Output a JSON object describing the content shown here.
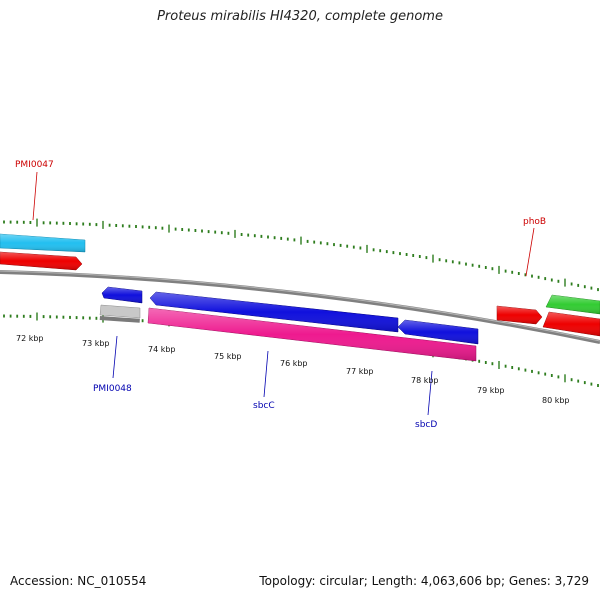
{
  "title": "Proteus mirabilis HI4320, complete genome",
  "footer": {
    "accession": "Accession: NC_010554",
    "summary": "Topology: circular; Length: 4,063,606 bp; Genes: 3,729"
  },
  "colors": {
    "background": "#ffffff",
    "backbone": "#808080",
    "ticks": "#2e7d1e",
    "label_red": "#cc0000",
    "label_blue": "#0000b0",
    "gene_cyan": "#22bff0",
    "gene_red": "#ee0000",
    "gene_blue": "#1010dd",
    "gene_gray": "#bdbdbd",
    "gene_pink": "#ee1a8f",
    "gene_green": "#33cc33"
  },
  "ruler": {
    "labels": [
      "72 kbp",
      "73 kbp",
      "74 kbp",
      "75 kbp",
      "76 kbp",
      "77 kbp",
      "78 kbp",
      "79 kbp",
      "80 kbp"
    ]
  },
  "genes": [
    {
      "label": "PMI0047",
      "color": "gene_cyan",
      "labelled": true,
      "label_color": "label_red"
    },
    {
      "label": "",
      "color": "gene_red",
      "labelled": false
    },
    {
      "label": "phoB",
      "color": "gene_red",
      "labelled": true,
      "label_color": "label_red"
    },
    {
      "label": "",
      "color": "gene_green",
      "labelled": false
    },
    {
      "label": "",
      "color": "gene_red",
      "labelled": false
    },
    {
      "label": "",
      "color": "gene_blue",
      "labelled": false
    },
    {
      "label": "sbcC",
      "color": "gene_blue",
      "labelled": true,
      "label_color": "label_blue"
    },
    {
      "label": "sbcD",
      "color": "gene_blue",
      "labelled": true,
      "label_color": "label_blue"
    },
    {
      "label": "PMI0048",
      "color": "gene_gray",
      "labelled": true,
      "label_color": "label_blue"
    },
    {
      "label": "",
      "color": "gene_pink",
      "labelled": false
    }
  ]
}
